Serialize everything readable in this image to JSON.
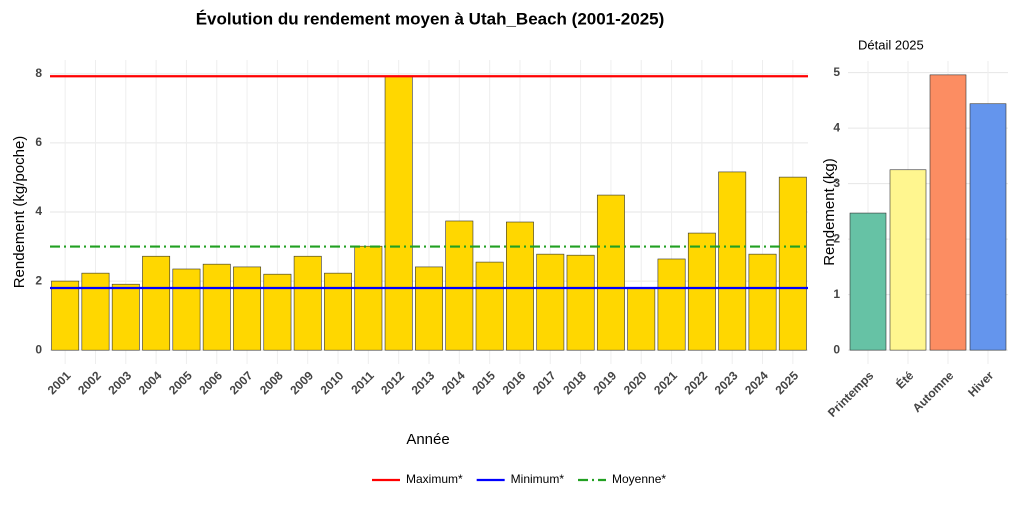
{
  "chart_data": [
    {
      "type": "bar",
      "title": "Évolution du rendement moyen à Utah_Beach (2001-2025)",
      "x_label": "Année",
      "y_label": "Rendement (kg/poche)",
      "categories": [
        "2001",
        "2002",
        "2003",
        "2004",
        "2005",
        "2006",
        "2007",
        "2008",
        "2009",
        "2010",
        "2011",
        "2012",
        "2013",
        "2014",
        "2015",
        "2016",
        "2017",
        "2018",
        "2019",
        "2020",
        "2021",
        "2022",
        "2023",
        "2024",
        "2025"
      ],
      "values": [
        2.0,
        2.23,
        1.91,
        2.72,
        2.35,
        2.49,
        2.41,
        2.2,
        2.72,
        2.23,
        3.01,
        7.93,
        2.41,
        3.74,
        2.55,
        3.71,
        2.78,
        2.75,
        4.49,
        1.8,
        2.64,
        3.39,
        5.16,
        2.78,
        5.01
      ],
      "color": "#ffd700",
      "ylim": [
        -0.4,
        8.4
      ],
      "yticks": [
        0,
        2,
        4,
        6,
        8
      ],
      "grid": true,
      "reference_lines": [
        {
          "name": "Maximum*",
          "value": 7.93,
          "color": "#ff0000",
          "style": "solid"
        },
        {
          "name": "Minimum*",
          "value": 1.8,
          "color": "#0000ff",
          "style": "solid"
        },
        {
          "name": "Moyenne*",
          "value": 3.0,
          "color": "#22a022",
          "style": "dashdot"
        }
      ],
      "legend": "bottom"
    },
    {
      "type": "bar",
      "title": "Détail 2025",
      "y_label": "Rendement (kg)",
      "categories": [
        "Printemps",
        "Été",
        "Automne",
        "Hiver"
      ],
      "values": [
        2.47,
        3.25,
        4.96,
        4.44
      ],
      "colors": [
        "#66c2a5",
        "#fff68f",
        "#fc8d62",
        "#6495ed"
      ],
      "ylim": [
        -0.25,
        5.21
      ],
      "yticks": [
        0,
        1,
        2,
        3,
        4,
        5
      ],
      "grid": true
    }
  ]
}
